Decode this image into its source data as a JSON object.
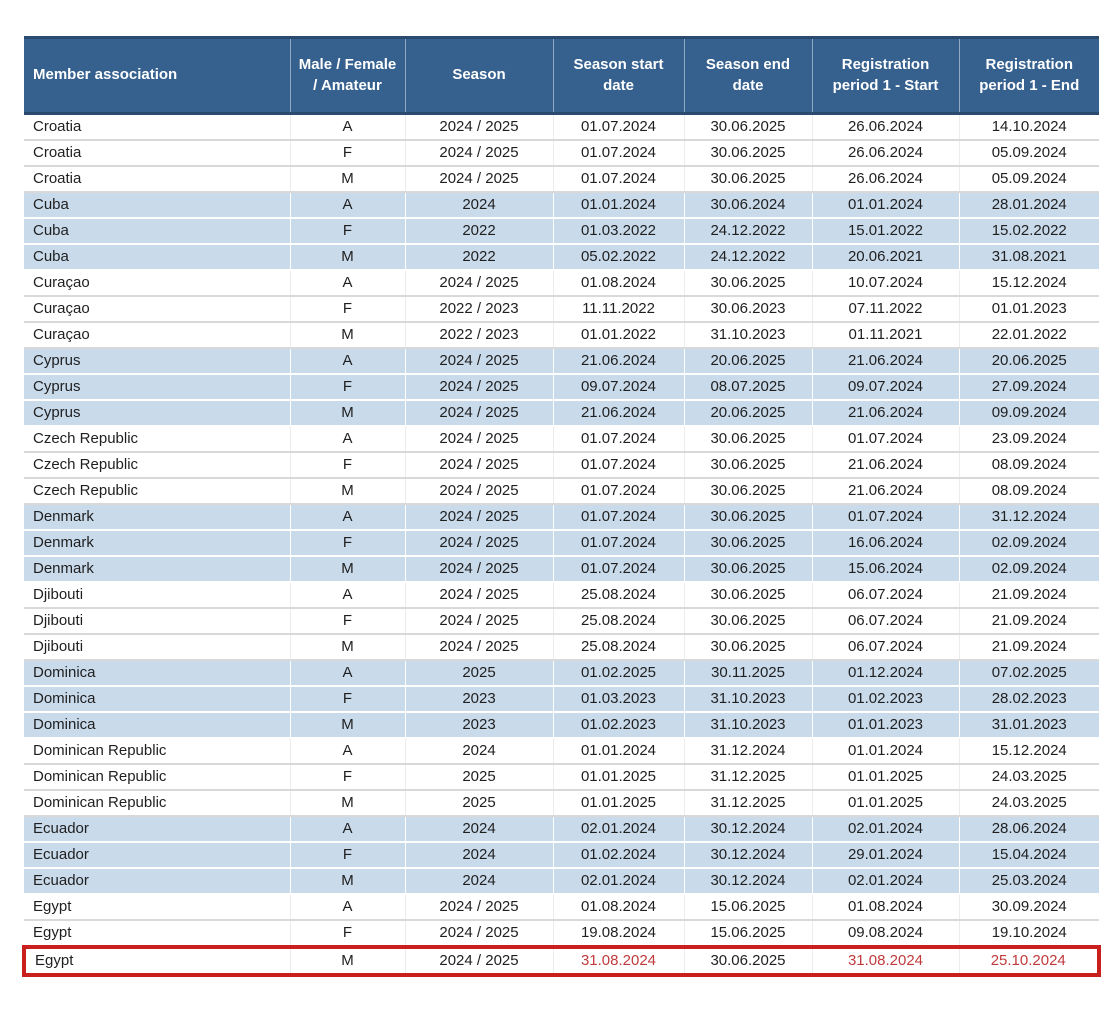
{
  "colors": {
    "header_bg": "#36618E",
    "header_text": "#FFFFFF",
    "band_bg": "#C9DAEB",
    "body_text": "#1F1F1F",
    "highlight_border": "#C9201D",
    "highlight_text": "#C13A3C"
  },
  "table": {
    "columns": [
      {
        "key": "association",
        "label": "Member association"
      },
      {
        "key": "mfa",
        "label": "Male / Female / Amateur"
      },
      {
        "key": "season",
        "label": "Season"
      },
      {
        "key": "season_start",
        "label": "Season start date"
      },
      {
        "key": "season_end",
        "label": "Season end date"
      },
      {
        "key": "reg1_start",
        "label": "Registration period 1 - Start"
      },
      {
        "key": "reg1_end",
        "label": "Registration period 1 - End"
      }
    ],
    "rows": [
      {
        "association": "Croatia",
        "mfa": "A",
        "season": "2024 / 2025",
        "season_start": "01.07.2024",
        "season_end": "30.06.2025",
        "reg1_start": "26.06.2024",
        "reg1_end": "14.10.2024"
      },
      {
        "association": "Croatia",
        "mfa": "F",
        "season": "2024 / 2025",
        "season_start": "01.07.2024",
        "season_end": "30.06.2025",
        "reg1_start": "26.06.2024",
        "reg1_end": "05.09.2024"
      },
      {
        "association": "Croatia",
        "mfa": "M",
        "season": "2024 / 2025",
        "season_start": "01.07.2024",
        "season_end": "30.06.2025",
        "reg1_start": "26.06.2024",
        "reg1_end": "05.09.2024"
      },
      {
        "association": "Cuba",
        "mfa": "A",
        "season": "2024",
        "season_start": "01.01.2024",
        "season_end": "30.06.2024",
        "reg1_start": "01.01.2024",
        "reg1_end": "28.01.2024"
      },
      {
        "association": "Cuba",
        "mfa": "F",
        "season": "2022",
        "season_start": "01.03.2022",
        "season_end": "24.12.2022",
        "reg1_start": "15.01.2022",
        "reg1_end": "15.02.2022"
      },
      {
        "association": "Cuba",
        "mfa": "M",
        "season": "2022",
        "season_start": "05.02.2022",
        "season_end": "24.12.2022",
        "reg1_start": "20.06.2021",
        "reg1_end": "31.08.2021"
      },
      {
        "association": "Curaçao",
        "mfa": "A",
        "season": "2024 / 2025",
        "season_start": "01.08.2024",
        "season_end": "30.06.2025",
        "reg1_start": "10.07.2024",
        "reg1_end": "15.12.2024"
      },
      {
        "association": "Curaçao",
        "mfa": "F",
        "season": "2022 / 2023",
        "season_start": "11.11.2022",
        "season_end": "30.06.2023",
        "reg1_start": "07.11.2022",
        "reg1_end": "01.01.2023"
      },
      {
        "association": "Curaçao",
        "mfa": "M",
        "season": "2022 / 2023",
        "season_start": "01.01.2022",
        "season_end": "31.10.2023",
        "reg1_start": "01.11.2021",
        "reg1_end": "22.01.2022"
      },
      {
        "association": "Cyprus",
        "mfa": "A",
        "season": "2024 / 2025",
        "season_start": "21.06.2024",
        "season_end": "20.06.2025",
        "reg1_start": "21.06.2024",
        "reg1_end": "20.06.2025"
      },
      {
        "association": "Cyprus",
        "mfa": "F",
        "season": "2024 / 2025",
        "season_start": "09.07.2024",
        "season_end": "08.07.2025",
        "reg1_start": "09.07.2024",
        "reg1_end": "27.09.2024"
      },
      {
        "association": "Cyprus",
        "mfa": "M",
        "season": "2024 / 2025",
        "season_start": "21.06.2024",
        "season_end": "20.06.2025",
        "reg1_start": "21.06.2024",
        "reg1_end": "09.09.2024"
      },
      {
        "association": "Czech Republic",
        "mfa": "A",
        "season": "2024 / 2025",
        "season_start": "01.07.2024",
        "season_end": "30.06.2025",
        "reg1_start": "01.07.2024",
        "reg1_end": "23.09.2024"
      },
      {
        "association": "Czech Republic",
        "mfa": "F",
        "season": "2024 / 2025",
        "season_start": "01.07.2024",
        "season_end": "30.06.2025",
        "reg1_start": "21.06.2024",
        "reg1_end": "08.09.2024"
      },
      {
        "association": "Czech Republic",
        "mfa": "M",
        "season": "2024 / 2025",
        "season_start": "01.07.2024",
        "season_end": "30.06.2025",
        "reg1_start": "21.06.2024",
        "reg1_end": "08.09.2024"
      },
      {
        "association": "Denmark",
        "mfa": "A",
        "season": "2024 / 2025",
        "season_start": "01.07.2024",
        "season_end": "30.06.2025",
        "reg1_start": "01.07.2024",
        "reg1_end": "31.12.2024"
      },
      {
        "association": "Denmark",
        "mfa": "F",
        "season": "2024 / 2025",
        "season_start": "01.07.2024",
        "season_end": "30.06.2025",
        "reg1_start": "16.06.2024",
        "reg1_end": "02.09.2024"
      },
      {
        "association": "Denmark",
        "mfa": "M",
        "season": "2024 / 2025",
        "season_start": "01.07.2024",
        "season_end": "30.06.2025",
        "reg1_start": "15.06.2024",
        "reg1_end": "02.09.2024"
      },
      {
        "association": "Djibouti",
        "mfa": "A",
        "season": "2024 / 2025",
        "season_start": "25.08.2024",
        "season_end": "30.06.2025",
        "reg1_start": "06.07.2024",
        "reg1_end": "21.09.2024"
      },
      {
        "association": "Djibouti",
        "mfa": "F",
        "season": "2024 / 2025",
        "season_start": "25.08.2024",
        "season_end": "30.06.2025",
        "reg1_start": "06.07.2024",
        "reg1_end": "21.09.2024"
      },
      {
        "association": "Djibouti",
        "mfa": "M",
        "season": "2024 / 2025",
        "season_start": "25.08.2024",
        "season_end": "30.06.2025",
        "reg1_start": "06.07.2024",
        "reg1_end": "21.09.2024"
      },
      {
        "association": "Dominica",
        "mfa": "A",
        "season": "2025",
        "season_start": "01.02.2025",
        "season_end": "30.11.2025",
        "reg1_start": "01.12.2024",
        "reg1_end": "07.02.2025"
      },
      {
        "association": "Dominica",
        "mfa": "F",
        "season": "2023",
        "season_start": "01.03.2023",
        "season_end": "31.10.2023",
        "reg1_start": "01.02.2023",
        "reg1_end": "28.02.2023"
      },
      {
        "association": "Dominica",
        "mfa": "M",
        "season": "2023",
        "season_start": "01.02.2023",
        "season_end": "31.10.2023",
        "reg1_start": "01.01.2023",
        "reg1_end": "31.01.2023"
      },
      {
        "association": "Dominican Republic",
        "mfa": "A",
        "season": "2024",
        "season_start": "01.01.2024",
        "season_end": "31.12.2024",
        "reg1_start": "01.01.2024",
        "reg1_end": "15.12.2024"
      },
      {
        "association": "Dominican Republic",
        "mfa": "F",
        "season": "2025",
        "season_start": "01.01.2025",
        "season_end": "31.12.2025",
        "reg1_start": "01.01.2025",
        "reg1_end": "24.03.2025"
      },
      {
        "association": "Dominican Republic",
        "mfa": "M",
        "season": "2025",
        "season_start": "01.01.2025",
        "season_end": "31.12.2025",
        "reg1_start": "01.01.2025",
        "reg1_end": "24.03.2025"
      },
      {
        "association": "Ecuador",
        "mfa": "A",
        "season": "2024",
        "season_start": "02.01.2024",
        "season_end": "30.12.2024",
        "reg1_start": "02.01.2024",
        "reg1_end": "28.06.2024"
      },
      {
        "association": "Ecuador",
        "mfa": "F",
        "season": "2024",
        "season_start": "01.02.2024",
        "season_end": "30.12.2024",
        "reg1_start": "29.01.2024",
        "reg1_end": "15.04.2024"
      },
      {
        "association": "Ecuador",
        "mfa": "M",
        "season": "2024",
        "season_start": "02.01.2024",
        "season_end": "30.12.2024",
        "reg1_start": "02.01.2024",
        "reg1_end": "25.03.2024"
      },
      {
        "association": "Egypt",
        "mfa": "A",
        "season": "2024 / 2025",
        "season_start": "01.08.2024",
        "season_end": "15.06.2025",
        "reg1_start": "01.08.2024",
        "reg1_end": "30.09.2024"
      },
      {
        "association": "Egypt",
        "mfa": "F",
        "season": "2024 / 2025",
        "season_start": "19.08.2024",
        "season_end": "15.06.2025",
        "reg1_start": "09.08.2024",
        "reg1_end": "19.10.2024"
      },
      {
        "association": "Egypt",
        "mfa": "M",
        "season": "2024 / 2025",
        "season_start": "31.08.2024",
        "season_end": "30.06.2025",
        "reg1_start": "31.08.2024",
        "reg1_end": "25.10.2024"
      }
    ],
    "highlight": {
      "association": "Egypt",
      "mfa": "M",
      "red_text_keys": [
        "season_start",
        "reg1_start",
        "reg1_end"
      ]
    }
  }
}
